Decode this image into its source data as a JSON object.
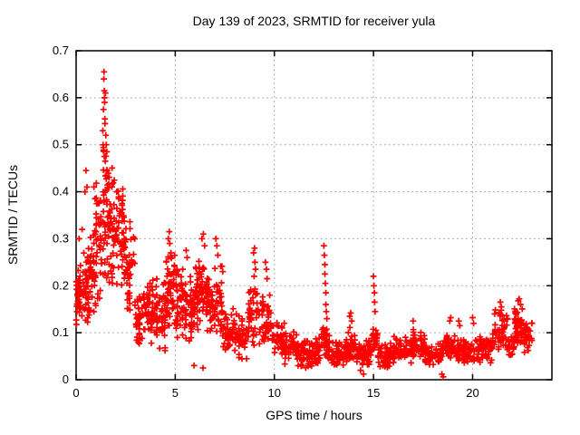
{
  "chart_data": {
    "type": "scatter",
    "title": "Day 139 of 2023, SRMTID for receiver yula",
    "xlabel": "GPS time / hours",
    "ylabel": "SRMTID / TECUs",
    "xlim": [
      0,
      24
    ],
    "ylim": [
      0,
      0.7
    ],
    "xtick_values": [
      0,
      5,
      10,
      15,
      20
    ],
    "xtick_labels": [
      "0",
      "5",
      "10",
      "15",
      "20"
    ],
    "ytick_values": [
      0,
      0.1,
      0.2,
      0.3,
      0.4,
      0.5,
      0.6,
      0.7
    ],
    "ytick_labels": [
      "0",
      "0.1",
      "0.2",
      "0.3",
      "0.4",
      "0.5",
      "0.6",
      "0.7"
    ],
    "grid": true,
    "legend": "none",
    "marker": {
      "shape": "plus",
      "color": "#ff0000",
      "size": 7
    },
    "colors": {
      "background": "#ffffff",
      "axis": "#000000",
      "grid": "#b0b0b0",
      "text": "#000000"
    },
    "points": [
      [
        0.15,
        0.3
      ],
      [
        0.3,
        0.32
      ],
      [
        0.45,
        0.4
      ],
      [
        0.5,
        0.445
      ],
      [
        0.55,
        0.41
      ],
      [
        0.9,
        0.41
      ],
      [
        0.95,
        0.385
      ],
      [
        1.35,
        0.53
      ],
      [
        1.38,
        0.575
      ],
      [
        1.4,
        0.64
      ],
      [
        1.41,
        0.655
      ],
      [
        1.42,
        0.615
      ],
      [
        1.43,
        0.6
      ],
      [
        1.44,
        0.59
      ],
      [
        1.45,
        0.555
      ],
      [
        1.46,
        0.545
      ],
      [
        1.48,
        0.61
      ],
      [
        1.5,
        0.52
      ],
      [
        1.52,
        0.5
      ],
      [
        1.55,
        0.485
      ],
      [
        1.42,
        0.475
      ],
      [
        1.47,
        0.465
      ],
      [
        2.05,
        0.4
      ],
      [
        2.15,
        0.385
      ],
      [
        2.3,
        0.355
      ],
      [
        4.65,
        0.3
      ],
      [
        4.7,
        0.315
      ],
      [
        4.72,
        0.29
      ],
      [
        4.78,
        0.27
      ],
      [
        5.55,
        0.275
      ],
      [
        5.6,
        0.26
      ],
      [
        5.95,
        0.03
      ],
      [
        6.4,
        0.025
      ],
      [
        6.35,
        0.3
      ],
      [
        6.42,
        0.31
      ],
      [
        6.48,
        0.285
      ],
      [
        7.05,
        0.3
      ],
      [
        7.1,
        0.285
      ],
      [
        7.15,
        0.265
      ],
      [
        8.95,
        0.27
      ],
      [
        9.0,
        0.28
      ],
      [
        9.02,
        0.25
      ],
      [
        9.05,
        0.235
      ],
      [
        8.98,
        0.22
      ],
      [
        9.55,
        0.25
      ],
      [
        9.6,
        0.235
      ],
      [
        9.63,
        0.215
      ],
      [
        12.5,
        0.285
      ],
      [
        12.52,
        0.265
      ],
      [
        12.55,
        0.245
      ],
      [
        12.55,
        0.225
      ],
      [
        12.57,
        0.205
      ],
      [
        12.6,
        0.185
      ],
      [
        12.6,
        0.16
      ],
      [
        12.62,
        0.145
      ],
      [
        12.65,
        0.13
      ],
      [
        13.8,
        0.135
      ],
      [
        13.85,
        0.142
      ],
      [
        13.9,
        0.125
      ],
      [
        14.35,
        0.02
      ],
      [
        14.5,
        0.012
      ],
      [
        15.0,
        0.22
      ],
      [
        15.02,
        0.2
      ],
      [
        15.05,
        0.185
      ],
      [
        15.06,
        0.165
      ],
      [
        15.08,
        0.145
      ],
      [
        17.0,
        0.125
      ],
      [
        18.45,
        0.012
      ],
      [
        18.52,
        0.006
      ],
      [
        18.85,
        0.125
      ],
      [
        18.9,
        0.132
      ],
      [
        19.3,
        0.125
      ],
      [
        19.35,
        0.115
      ],
      [
        20.0,
        0.132
      ],
      [
        20.05,
        0.12
      ],
      [
        21.4,
        0.165
      ],
      [
        21.45,
        0.155
      ],
      [
        22.3,
        0.168
      ],
      [
        22.35,
        0.172
      ],
      [
        22.42,
        0.16
      ]
    ],
    "density_bands": [
      [
        0.0,
        0.3,
        0.09,
        0.26,
        40
      ],
      [
        0.3,
        0.7,
        0.1,
        0.3,
        46
      ],
      [
        0.7,
        1.0,
        0.12,
        0.35,
        36
      ],
      [
        1.0,
        1.3,
        0.15,
        0.45,
        36
      ],
      [
        1.3,
        1.6,
        0.2,
        0.55,
        40
      ],
      [
        1.6,
        2.0,
        0.18,
        0.48,
        48
      ],
      [
        2.0,
        2.5,
        0.18,
        0.42,
        50
      ],
      [
        2.5,
        3.0,
        0.12,
        0.35,
        44
      ],
      [
        3.0,
        3.5,
        0.06,
        0.2,
        48
      ],
      [
        3.5,
        4.0,
        0.06,
        0.22,
        48
      ],
      [
        4.0,
        4.5,
        0.05,
        0.24,
        46
      ],
      [
        4.5,
        5.0,
        0.1,
        0.28,
        50
      ],
      [
        5.0,
        5.5,
        0.08,
        0.25,
        46
      ],
      [
        5.5,
        6.0,
        0.07,
        0.24,
        46
      ],
      [
        6.0,
        6.5,
        0.1,
        0.27,
        50
      ],
      [
        6.5,
        7.0,
        0.09,
        0.25,
        46
      ],
      [
        7.0,
        7.4,
        0.07,
        0.26,
        36
      ],
      [
        7.4,
        8.0,
        0.04,
        0.16,
        44
      ],
      [
        8.0,
        8.7,
        0.04,
        0.15,
        44
      ],
      [
        8.7,
        9.2,
        0.07,
        0.21,
        40
      ],
      [
        9.2,
        9.9,
        0.06,
        0.19,
        46
      ],
      [
        9.9,
        10.5,
        0.04,
        0.13,
        42
      ],
      [
        10.5,
        11.2,
        0.03,
        0.11,
        48
      ],
      [
        11.2,
        12.3,
        0.02,
        0.09,
        75
      ],
      [
        12.3,
        12.8,
        0.03,
        0.12,
        40
      ],
      [
        12.8,
        13.7,
        0.02,
        0.09,
        62
      ],
      [
        13.7,
        14.1,
        0.03,
        0.12,
        30
      ],
      [
        14.1,
        14.9,
        0.02,
        0.09,
        54
      ],
      [
        14.9,
        15.2,
        0.04,
        0.14,
        24
      ],
      [
        15.2,
        16.0,
        0.02,
        0.08,
        54
      ],
      [
        16.0,
        17.0,
        0.03,
        0.1,
        64
      ],
      [
        17.0,
        17.6,
        0.04,
        0.11,
        42
      ],
      [
        17.6,
        18.5,
        0.03,
        0.08,
        56
      ],
      [
        18.5,
        19.1,
        0.04,
        0.1,
        38
      ],
      [
        19.1,
        20.3,
        0.03,
        0.09,
        76
      ],
      [
        20.3,
        21.0,
        0.03,
        0.1,
        46
      ],
      [
        21.0,
        21.8,
        0.05,
        0.15,
        56
      ],
      [
        21.8,
        22.1,
        0.04,
        0.1,
        22
      ],
      [
        22.1,
        22.6,
        0.07,
        0.16,
        42
      ],
      [
        22.6,
        23.0,
        0.05,
        0.13,
        32
      ]
    ],
    "seed": 20230519
  }
}
